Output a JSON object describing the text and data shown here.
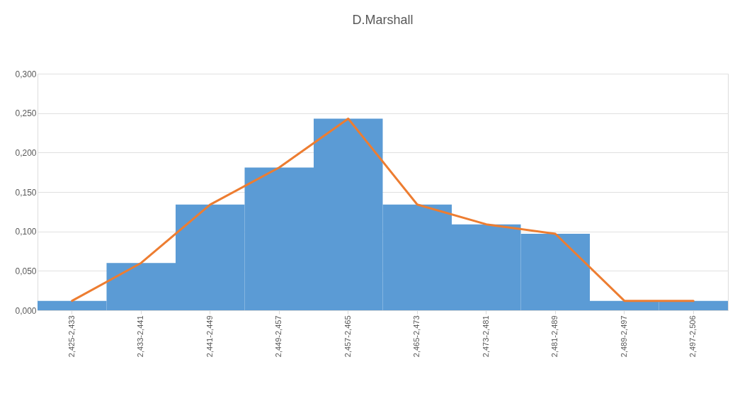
{
  "chart_data": {
    "type": "bar",
    "title": "D.Marshall",
    "categories": [
      "2,425-2,433",
      "2,433-2,441",
      "2,441-2,449",
      "2,449-2,457",
      "2,457-2,465",
      "2,465-2,473",
      "2,473-2,481",
      "2,481-2,489",
      "2,489-2,497",
      "2,497-2,506"
    ],
    "series": [
      {
        "color": "#5b9bd5",
        "values": [
          0.012,
          0.06,
          0.134,
          0.181,
          0.243,
          0.134,
          0.109,
          0.097,
          0.012,
          0.012
        ]
      },
      {
        "type": "line",
        "color": "#ed7d31",
        "values": [
          0.012,
          0.06,
          0.134,
          0.181,
          0.243,
          0.134,
          0.109,
          0.097,
          0.012,
          0.012
        ]
      }
    ],
    "ylim": [
      0,
      0.3
    ],
    "yticks": [
      {
        "value": 0,
        "label": "0,000"
      },
      {
        "value": 0.05,
        "label": "0,050"
      },
      {
        "value": 0.1,
        "label": "0,100"
      },
      {
        "value": 0.15,
        "label": "0,150"
      },
      {
        "value": 0.2,
        "label": "0,200"
      },
      {
        "value": 0.25,
        "label": "0,250"
      },
      {
        "value": 0.3,
        "label": "0,300"
      }
    ],
    "grid": "y"
  }
}
